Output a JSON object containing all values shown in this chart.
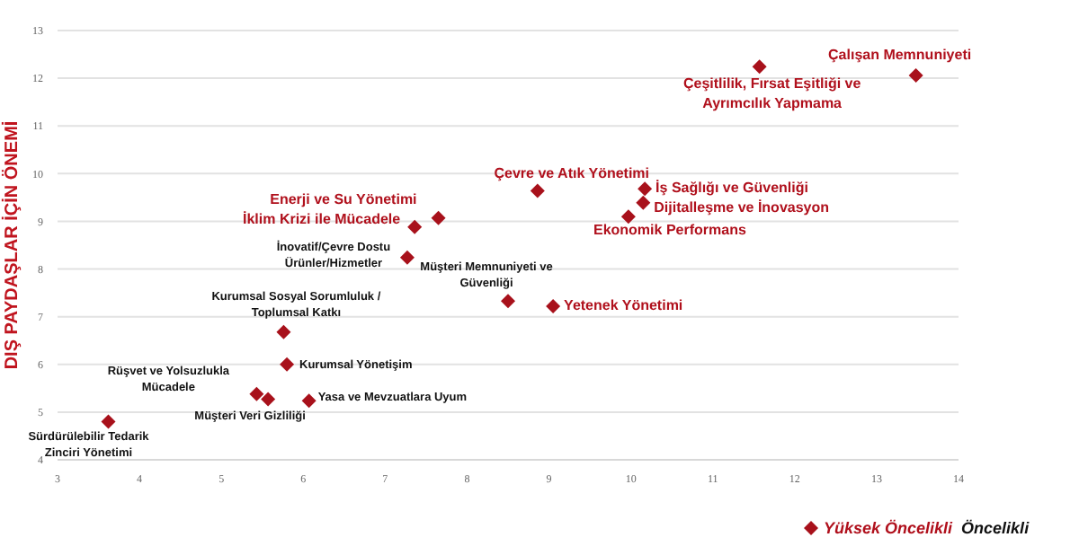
{
  "chart_data": {
    "type": "scatter",
    "ylabel": "DIŞ PAYDAŞLAR İÇİN ÖNEMİ",
    "xlim": [
      3,
      14
    ],
    "xticks": [
      3,
      4,
      5,
      6,
      7,
      8,
      9,
      10,
      11,
      12,
      13,
      14
    ],
    "ylim": [
      4,
      13
    ],
    "yticks": [
      4,
      5,
      6,
      7,
      8,
      9,
      10,
      11,
      12,
      13
    ],
    "grid": "y",
    "legend": "bottom right",
    "marker": "diamond",
    "series": [
      {
        "name": "Yüksek Öncelikli",
        "color": "#a8111b",
        "x": [
          13.48,
          11.57,
          8.86,
          10.17,
          10.15,
          9.97,
          7.65,
          7.36,
          9.05
        ],
        "values": [
          12.06,
          12.24,
          9.64,
          9.68,
          9.39,
          9.1,
          9.07,
          8.88,
          7.22
        ]
      },
      {
        "name": "Öncelikli",
        "color": "#a8111b",
        "x": [
          7.27,
          8.5,
          5.76,
          5.8,
          5.43,
          5.57,
          6.07,
          3.62
        ],
        "values": [
          8.24,
          7.33,
          6.68,
          6.0,
          5.38,
          5.27,
          5.24,
          4.8
        ]
      }
    ],
    "annotations": [
      {
        "text": "Çalışan Memnuniyeti",
        "x": 13.48,
        "y": 12.06
      },
      {
        "text": "Çeşitlilik, Fırsat Eşitliği ve\nAyrımcılık Yapmama",
        "x": 11.57,
        "y": 12.24
      },
      {
        "text": "Çevre ve Atık Yönetimi",
        "x": 8.86,
        "y": 9.64
      },
      {
        "text": "İş Sağlığı ve Güvenliği",
        "x": 10.17,
        "y": 9.68
      },
      {
        "text": "Dijitalleşme ve İnovasyon",
        "x": 10.15,
        "y": 9.39
      },
      {
        "text": "Ekonomik Performans",
        "x": 9.97,
        "y": 9.1
      },
      {
        "text": "Enerji ve Su Yönetimi",
        "x": 7.65,
        "y": 9.07
      },
      {
        "text": "İklim Krizi ile Mücadele",
        "x": 7.36,
        "y": 8.88
      },
      {
        "text": "Yetenek Yönetimi",
        "x": 9.05,
        "y": 7.22
      },
      {
        "text": "İnovatif/Çevre Dostu\nÜrünler/Hizmetler",
        "x": 7.27,
        "y": 8.24
      },
      {
        "text": "Müşteri Memnuniyeti ve\nGüvenliği",
        "x": 8.5,
        "y": 7.33
      },
      {
        "text": "Kurumsal Sosyal Sorumluluk /\nToplumsal Katkı",
        "x": 5.76,
        "y": 6.68
      },
      {
        "text": "Kurumsal Yönetişim",
        "x": 5.8,
        "y": 6.0
      },
      {
        "text": "Rüşvet ve Yolsuzlukla\nMücadele",
        "x": 5.43,
        "y": 5.38
      },
      {
        "text": "Müşteri Veri Gizliliği",
        "x": 5.57,
        "y": 5.27
      },
      {
        "text": "Yasa ve Mevzuatlara Uyum",
        "x": 6.07,
        "y": 5.24
      },
      {
        "text": "Sürdürülebilir Tedarik\nZinciri Yönetimi",
        "x": 3.62,
        "y": 4.8
      }
    ]
  }
}
